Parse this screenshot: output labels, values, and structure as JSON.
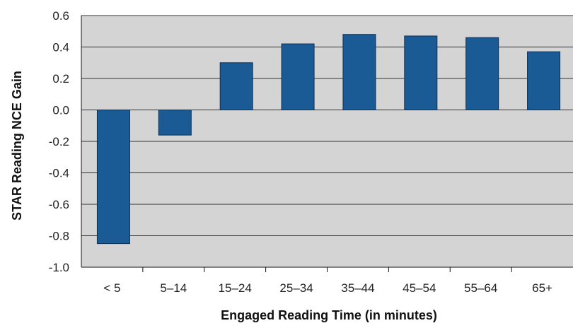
{
  "chart_data": {
    "type": "bar",
    "title": "",
    "xlabel": "Engaged Reading Time (in minutes)",
    "ylabel": "STAR Reading NCE Gain",
    "categories": [
      "< 5",
      "5–14",
      "15–24",
      "25–34",
      "35–44",
      "45–54",
      "55–64",
      "65+"
    ],
    "values": [
      -0.85,
      -0.16,
      0.3,
      0.42,
      0.48,
      0.47,
      0.46,
      0.37
    ],
    "ylim": [
      -1.0,
      0.6
    ],
    "yticks": [
      "0.6",
      "0.4",
      "0.2",
      "0.0",
      "-0.2",
      "-0.4",
      "-0.6",
      "-0.8",
      "-1.0"
    ],
    "grid": true,
    "legend": "none",
    "colors": {
      "bar_fill": "#1a5b96",
      "bar_stroke": "#0d2f55",
      "plot_background": "#d4d4d4",
      "gridline": "#333333"
    }
  }
}
